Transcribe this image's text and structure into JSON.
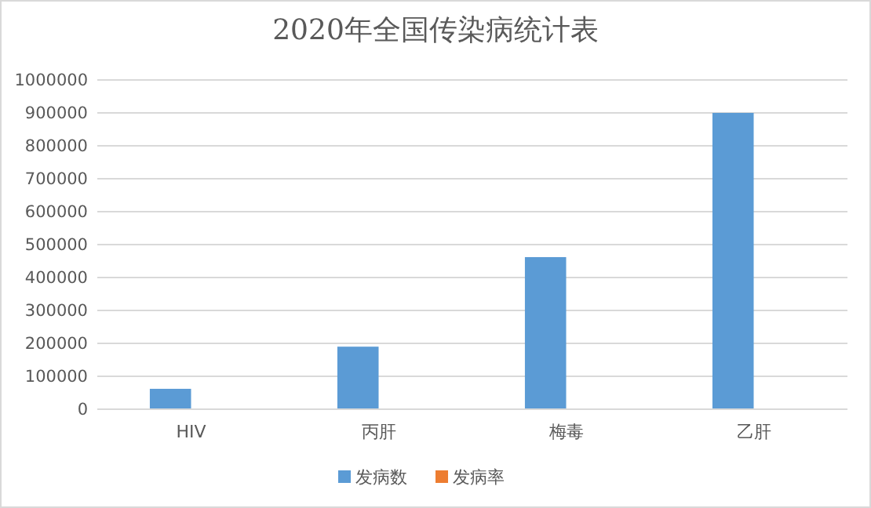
{
  "chart_data": {
    "type": "bar",
    "title": "2020年全国传染病统计表",
    "categories": [
      "HIV",
      "丙肝",
      "梅毒",
      "乙肝"
    ],
    "series": [
      {
        "name": "发病数",
        "color": "#5b9bd5",
        "values": [
          62000,
          190000,
          462000,
          900000
        ]
      },
      {
        "name": "发病率",
        "color": "#ed7d31",
        "values": [
          0,
          0,
          0,
          0
        ]
      }
    ],
    "ylim": [
      0,
      1000000
    ],
    "yticks": [
      0,
      100000,
      200000,
      300000,
      400000,
      500000,
      600000,
      700000,
      800000,
      900000,
      1000000
    ],
    "grid": "y",
    "legend": "bottom"
  }
}
